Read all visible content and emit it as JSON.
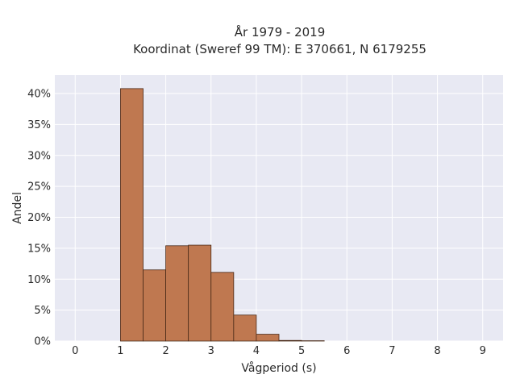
{
  "chart_data": {
    "type": "bar",
    "title_line1": "År 1979 - 2019",
    "title_line2": "Koordinat (Sweref 99 TM): E 370661, N 6179255",
    "xlabel": "Vågperiod (s)",
    "ylabel": "Andel",
    "xlim": [
      -0.45,
      9.45
    ],
    "ylim": [
      0,
      0.43
    ],
    "x_ticks": [
      0,
      1,
      2,
      3,
      4,
      5,
      6,
      7,
      8,
      9
    ],
    "y_ticks": [
      0,
      0.05,
      0.1,
      0.15,
      0.2,
      0.25,
      0.3,
      0.35,
      0.4
    ],
    "y_tick_labels": [
      "0%",
      "5%",
      "10%",
      "15%",
      "20%",
      "25%",
      "30%",
      "35%",
      "40%"
    ],
    "bin_width": 0.5,
    "bins": [
      {
        "start": 1.0,
        "value": 0.408
      },
      {
        "start": 1.5,
        "value": 0.115
      },
      {
        "start": 2.0,
        "value": 0.154
      },
      {
        "start": 2.5,
        "value": 0.155
      },
      {
        "start": 3.0,
        "value": 0.111
      },
      {
        "start": 3.5,
        "value": 0.042
      },
      {
        "start": 4.0,
        "value": 0.011
      },
      {
        "start": 4.5,
        "value": 0.001
      },
      {
        "start": 5.0,
        "value": 0.0005
      }
    ],
    "grid": true,
    "colors": {
      "bar_fill": "#bf7850",
      "bar_stroke": "#4a2a18",
      "plot_bg": "#e8e9f3",
      "grid": "#ffffff"
    }
  }
}
